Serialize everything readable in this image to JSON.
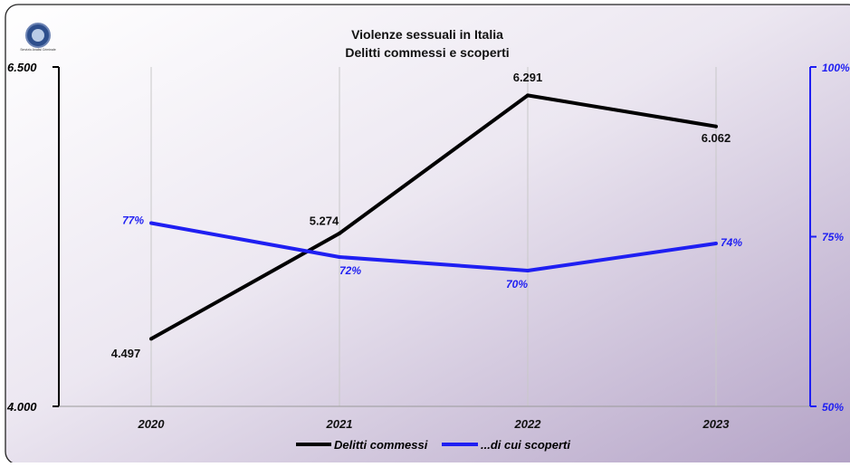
{
  "chart_data": {
    "type": "line",
    "title": "Violenze sessuali in Italia",
    "subtitle": "Delitti commessi e scoperti",
    "categories": [
      "2020",
      "2021",
      "2022",
      "2023"
    ],
    "series": [
      {
        "name": "Delitti commessi",
        "axis": "left",
        "color": "#000000",
        "values": [
          4497,
          5274,
          6291,
          6062
        ],
        "labels": [
          "4.497",
          "5.274",
          "6.291",
          "6.062"
        ]
      },
      {
        "name": "...di cui scoperti",
        "axis": "right",
        "color": "#1f1ff2",
        "values": [
          77,
          72,
          70,
          74
        ],
        "labels": [
          "77%",
          "72%",
          "70%",
          "74%"
        ]
      }
    ],
    "y_left": {
      "min": 4000,
      "max": 6500,
      "tick_labels": [
        "4.000",
        "6.500"
      ]
    },
    "y_right": {
      "min": 50,
      "max": 100,
      "tick_labels": [
        "50%",
        "75%",
        "100%"
      ]
    },
    "grid": "vertical",
    "legend": "bottom"
  },
  "logo": {
    "name": "organization-seal-icon",
    "text": "Servizio Analisi Criminale"
  },
  "colors": {
    "left_axis": "#000000",
    "right_axis": "#1f1ff2",
    "grid": "#c8c8c8"
  }
}
